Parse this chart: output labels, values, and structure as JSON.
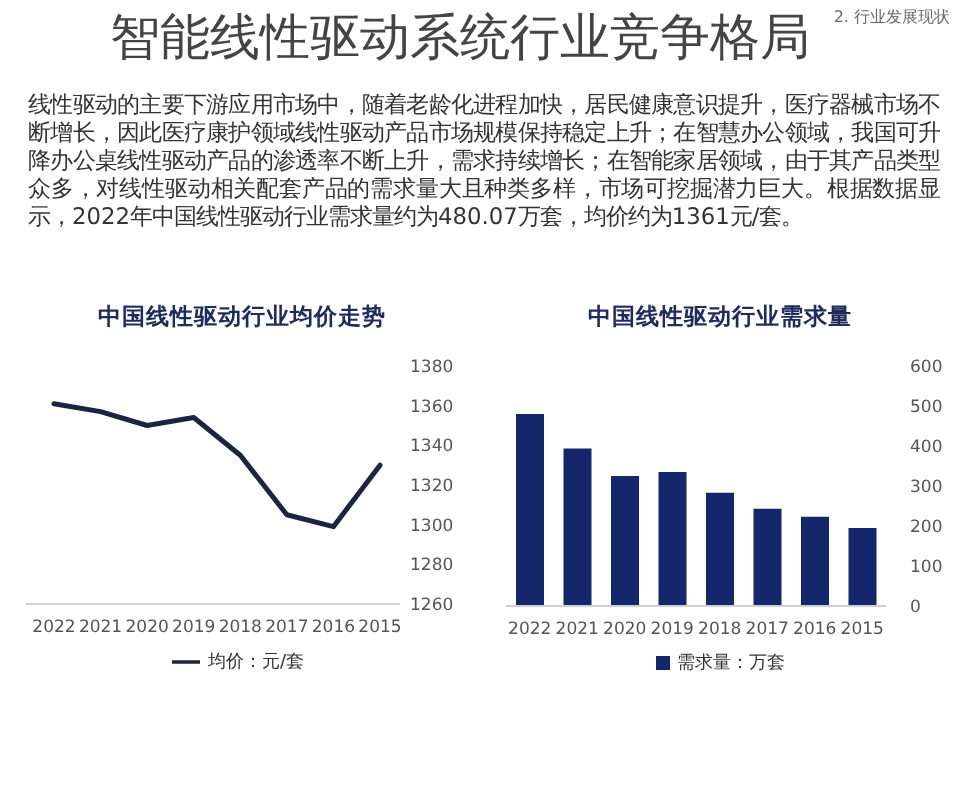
{
  "chart_data": [
    {
      "type": "other",
      "title": "智能线性驱动系统行业竞争格局",
      "annotations": [
        "2. 行业发展现状",
        "线性驱动的主要下游应用市场中，随着老龄化进程加快，居民健康意识提升，医疗器械市场不断增长，因此医疗康护领域线性驱动产品市场规模保持稳定上升；在智慧办公领域，我国可升降办公桌线性驱动产品的渗透率不断上升，需求持续增长；在智能家居领域，由于其产品类型众多，对线性驱动相关配套产品的需求量大且种类多样，市场可挖掘潜力巨大。根据数据显示，2022年中国线性驱动行业需求量约为480.07万套，均价约为1361元/套。"
      ]
    },
    {
      "type": "line",
      "title": "中国线性驱动行业均价走势",
      "categories": [
        "2022",
        "2021",
        "2020",
        "2019",
        "2018",
        "2017",
        "2016",
        "2015"
      ],
      "series": [
        {
          "name": "均价：元/套",
          "color": "#1d2440",
          "values": [
            1361,
            1357,
            1350,
            1354,
            1335,
            1305,
            1299,
            1330
          ]
        }
      ],
      "ylim": [
        1260,
        1380
      ],
      "yticks": [
        1260,
        1280,
        1300,
        1320,
        1340,
        1360,
        1380
      ],
      "legend": "bottom",
      "marker": "none",
      "line_style": "solid"
    },
    {
      "type": "bar",
      "title": "中国线性驱动行业需求量",
      "categories": [
        "2022",
        "2021",
        "2020",
        "2019",
        "2018",
        "2017",
        "2016",
        "2015"
      ],
      "series": [
        {
          "name": "需求量：万套",
          "color": "#15276b",
          "values": [
            480,
            394,
            325,
            335,
            283,
            243,
            223,
            195
          ]
        }
      ],
      "ylim": [
        0,
        600
      ],
      "yticks": [
        0,
        100,
        200,
        300,
        400,
        500,
        600
      ],
      "legend": "bottom"
    }
  ]
}
